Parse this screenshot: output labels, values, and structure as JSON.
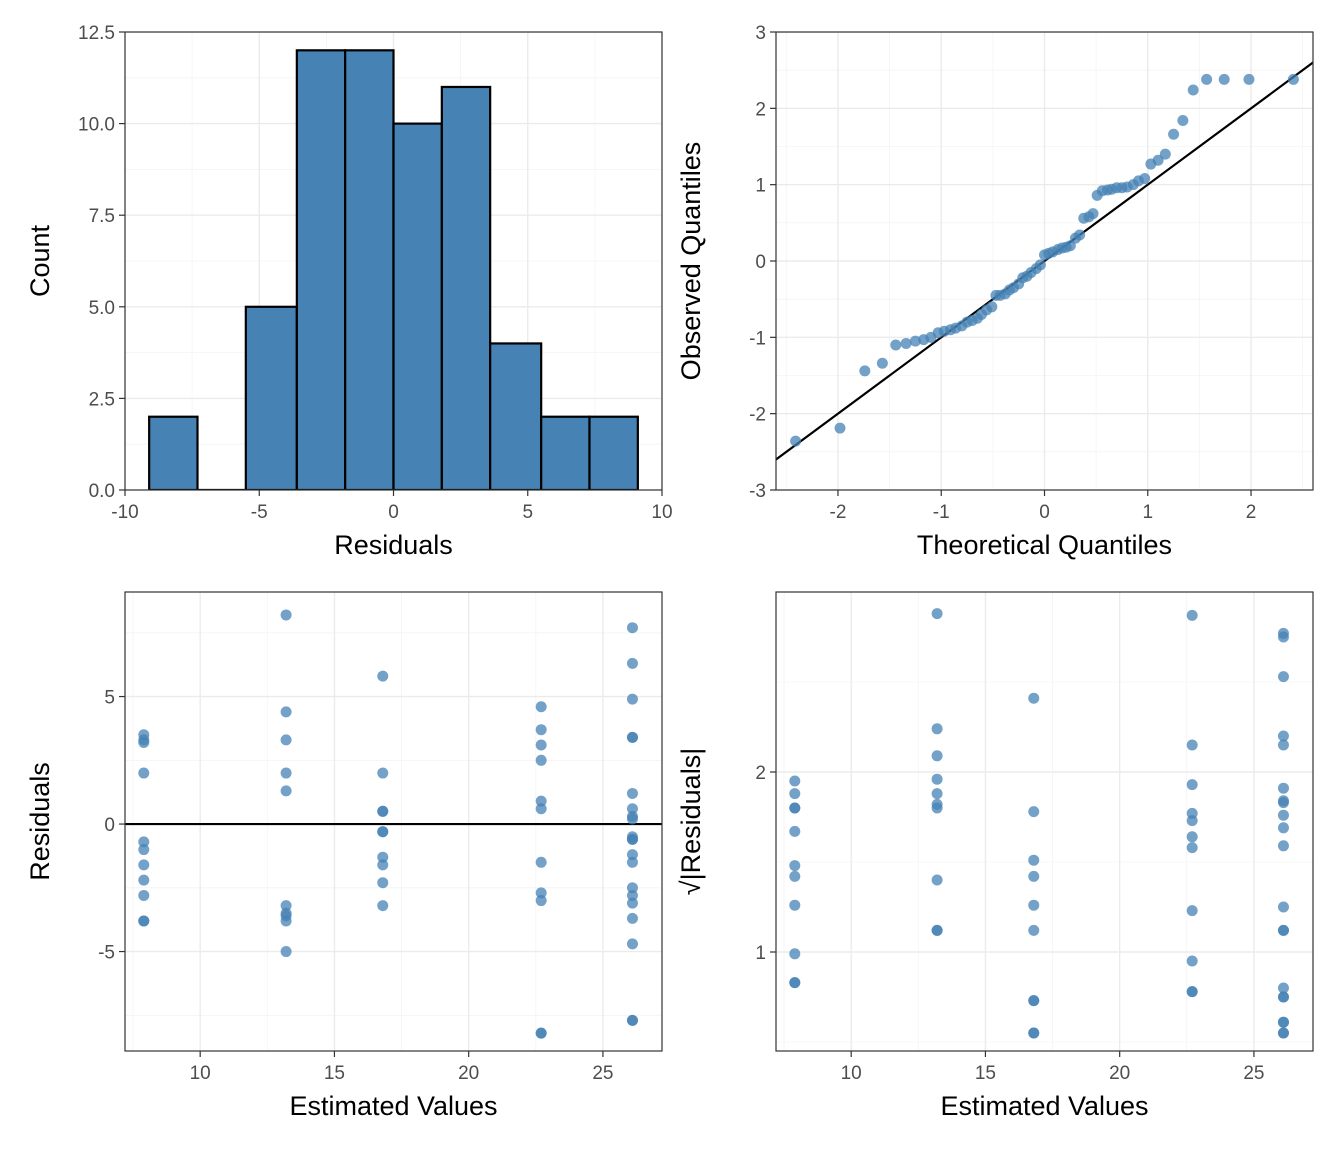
{
  "chart_data": [
    {
      "id": "histogram",
      "type": "bar",
      "xlabel": "Residuals",
      "ylabel": "Count",
      "xlim": [
        -10,
        10
      ],
      "ylim": [
        0,
        12.5
      ],
      "x_ticks": [
        -10,
        -5,
        0,
        5,
        10
      ],
      "x_tick_labels": [
        "-10",
        "-5",
        "0",
        "5",
        "10"
      ],
      "y_ticks": [
        0,
        2.5,
        5,
        7.5,
        10,
        12.5
      ],
      "y_tick_labels": [
        "0.0",
        "2.5",
        "5.0",
        "7.5",
        "10.0",
        "12.5"
      ],
      "bins": [
        {
          "x0": -9.1,
          "x1": -7.3,
          "count": 2
        },
        {
          "x0": -7.3,
          "x1": -5.5,
          "count": 0
        },
        {
          "x0": -5.5,
          "x1": -3.6,
          "count": 5
        },
        {
          "x0": -3.6,
          "x1": -1.8,
          "count": 12
        },
        {
          "x0": -1.8,
          "x1": 0.0,
          "count": 12
        },
        {
          "x0": 0.0,
          "x1": 1.8,
          "count": 10
        },
        {
          "x0": 1.8,
          "x1": 3.6,
          "count": 11
        },
        {
          "x0": 3.6,
          "x1": 5.5,
          "count": 4
        },
        {
          "x0": 5.5,
          "x1": 7.3,
          "count": 2
        },
        {
          "x0": 7.3,
          "x1": 9.1,
          "count": 2
        }
      ],
      "fill": "#4682b4",
      "stroke": "#000000",
      "grid": true
    },
    {
      "id": "qqplot",
      "type": "scatter",
      "xlabel": "Theoretical Quantiles",
      "ylabel": "Observed Quantiles",
      "xlim": [
        -2.6,
        2.6
      ],
      "ylim": [
        -3,
        3
      ],
      "x_ticks": [
        -2,
        -1,
        0,
        1,
        2
      ],
      "x_tick_labels": [
        "-2",
        "-1",
        "0",
        "1",
        "2"
      ],
      "y_ticks": [
        -3,
        -2,
        -1,
        0,
        1,
        2,
        3
      ],
      "y_tick_labels": [
        "-3",
        "-2",
        "-1",
        "0",
        "1",
        "2",
        "3"
      ],
      "reference_line": {
        "slope": 1,
        "intercept": 0
      },
      "x": [
        -2.41,
        -1.98,
        -1.74,
        -1.57,
        -1.44,
        -1.34,
        -1.25,
        -1.17,
        -1.1,
        -1.03,
        -0.97,
        -0.91,
        -0.86,
        -0.8,
        -0.75,
        -0.7,
        -0.65,
        -0.61,
        -0.56,
        -0.51,
        -0.47,
        -0.43,
        -0.38,
        -0.34,
        -0.3,
        -0.25,
        -0.21,
        -0.17,
        -0.13,
        -0.08,
        -0.04,
        0.0,
        0.04,
        0.08,
        0.13,
        0.17,
        0.21,
        0.25,
        0.3,
        0.34,
        0.38,
        0.43,
        0.47,
        0.51,
        0.56,
        0.61,
        0.65,
        0.7,
        0.75,
        0.8,
        0.86,
        0.91,
        0.97,
        1.03,
        1.1,
        1.17,
        1.25,
        1.34,
        1.44,
        1.57,
        1.74,
        1.98,
        2.41
      ],
      "y": [
        -2.36,
        -2.19,
        -1.44,
        -1.34,
        -1.1,
        -1.08,
        -1.05,
        -1.03,
        -1.0,
        -0.94,
        -0.92,
        -0.9,
        -0.88,
        -0.85,
        -0.8,
        -0.78,
        -0.75,
        -0.7,
        -0.64,
        -0.6,
        -0.45,
        -0.45,
        -0.43,
        -0.38,
        -0.35,
        -0.3,
        -0.22,
        -0.2,
        -0.15,
        -0.1,
        -0.05,
        0.08,
        0.1,
        0.12,
        0.15,
        0.17,
        0.18,
        0.2,
        0.3,
        0.34,
        0.56,
        0.58,
        0.62,
        0.86,
        0.92,
        0.93,
        0.94,
        0.96,
        0.96,
        0.97,
        1.0,
        1.05,
        1.08,
        1.27,
        1.32,
        1.4,
        1.66,
        1.84,
        2.24,
        2.38,
        2.38,
        2.38,
        2.38
      ],
      "point_color": "#4682b4",
      "grid": true
    },
    {
      "id": "residuals-vs-fitted",
      "type": "scatter",
      "xlabel": "Estimated Values",
      "ylabel": "Residuals",
      "xlim": [
        7.2,
        27.2
      ],
      "ylim": [
        -8.9,
        9.1
      ],
      "x_ticks": [
        10,
        15,
        20,
        25
      ],
      "x_tick_labels": [
        "10",
        "15",
        "20",
        "25"
      ],
      "y_ticks": [
        -5,
        0,
        5
      ],
      "y_tick_labels": [
        "-5",
        "0",
        "5"
      ],
      "reference_line": {
        "y": 0
      },
      "x": [
        7.9,
        7.9,
        7.9,
        7.9,
        7.9,
        7.9,
        7.9,
        7.9,
        7.9,
        7.9,
        7.9,
        13.2,
        13.2,
        13.2,
        13.2,
        13.2,
        13.2,
        13.2,
        13.2,
        13.2,
        13.2,
        16.8,
        16.8,
        16.8,
        16.8,
        16.8,
        16.8,
        16.8,
        16.8,
        16.8,
        16.8,
        22.7,
        22.7,
        22.7,
        22.7,
        22.7,
        22.7,
        22.7,
        22.7,
        22.7,
        22.7,
        22.7,
        26.1,
        26.1,
        26.1,
        26.1,
        26.1,
        26.1,
        26.1,
        26.1,
        26.1,
        26.1,
        26.1,
        26.1,
        26.1,
        26.1,
        26.1,
        26.1,
        26.1,
        26.1,
        26.1,
        26.1,
        26.1
      ],
      "y": [
        3.5,
        3.3,
        3.2,
        2.0,
        -0.7,
        -1.0,
        -1.6,
        -2.2,
        -2.8,
        -3.8,
        -3.8,
        8.2,
        4.4,
        3.3,
        2.0,
        1.3,
        -3.2,
        -3.5,
        -3.6,
        -3.8,
        -5.0,
        5.8,
        2.0,
        0.5,
        0.5,
        -0.3,
        -0.3,
        -1.3,
        -1.6,
        -2.3,
        -3.2,
        4.6,
        3.7,
        3.1,
        2.5,
        0.9,
        0.6,
        -1.5,
        -2.7,
        -3.0,
        -8.2,
        -8.2,
        7.7,
        6.3,
        4.9,
        3.4,
        3.4,
        1.2,
        0.6,
        0.3,
        0.2,
        -0.5,
        -0.6,
        -0.6,
        -1.2,
        -1.5,
        -2.5,
        -2.8,
        -3.1,
        -3.7,
        -4.7,
        -7.7,
        -7.7
      ],
      "point_color": "#4682b4",
      "grid": true
    },
    {
      "id": "scale-location",
      "type": "scatter",
      "xlabel": "Estimated Values",
      "ylabel": "√|Residuals|",
      "xlim": [
        7.2,
        27.2
      ],
      "ylim": [
        0.45,
        3.0
      ],
      "x_ticks": [
        10,
        15,
        20,
        25
      ],
      "x_tick_labels": [
        "10",
        "15",
        "20",
        "25"
      ],
      "y_ticks": [
        1,
        2
      ],
      "y_tick_labels": [
        "1",
        "2"
      ],
      "x": [
        7.9,
        7.9,
        7.9,
        7.9,
        7.9,
        7.9,
        7.9,
        7.9,
        7.9,
        7.9,
        7.9,
        13.2,
        13.2,
        13.2,
        13.2,
        13.2,
        13.2,
        13.2,
        13.2,
        13.2,
        13.2,
        16.8,
        16.8,
        16.8,
        16.8,
        16.8,
        16.8,
        16.8,
        16.8,
        16.8,
        16.8,
        22.7,
        22.7,
        22.7,
        22.7,
        22.7,
        22.7,
        22.7,
        22.7,
        22.7,
        22.7,
        22.7,
        26.1,
        26.1,
        26.1,
        26.1,
        26.1,
        26.1,
        26.1,
        26.1,
        26.1,
        26.1,
        26.1,
        26.1,
        26.1,
        26.1,
        26.1,
        26.1,
        26.1,
        26.1,
        26.1,
        26.1,
        26.1
      ],
      "y": [
        1.95,
        1.88,
        1.8,
        1.8,
        1.67,
        1.48,
        1.42,
        1.26,
        0.99,
        0.83,
        0.83,
        2.88,
        2.24,
        2.09,
        1.96,
        1.88,
        1.82,
        1.8,
        1.4,
        1.12,
        1.12,
        2.41,
        1.78,
        1.51,
        1.42,
        1.26,
        1.12,
        0.73,
        0.73,
        0.55,
        0.55,
        2.87,
        2.15,
        1.93,
        1.77,
        1.73,
        1.64,
        1.58,
        1.23,
        0.95,
        0.78,
        0.78,
        2.77,
        2.75,
        2.53,
        2.2,
        2.15,
        1.91,
        1.84,
        1.83,
        1.76,
        1.69,
        1.59,
        1.25,
        1.12,
        1.12,
        0.8,
        0.75,
        0.75,
        0.61,
        0.61,
        0.55,
        0.55
      ],
      "point_color": "#4682b4",
      "grid": true
    }
  ]
}
